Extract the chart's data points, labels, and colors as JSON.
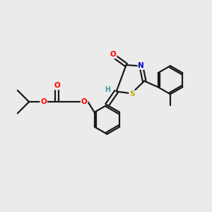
{
  "background_color": "#ebebeb",
  "bond_color": "#1a1a1a",
  "atom_colors": {
    "O": "#ff0000",
    "N": "#0000cd",
    "S": "#ccaa00",
    "H": "#4a9a9a",
    "C": "#1a1a1a"
  },
  "figsize": [
    3.0,
    3.0
  ],
  "dpi": 100,
  "lw": 1.6,
  "fontsize": 7.5
}
